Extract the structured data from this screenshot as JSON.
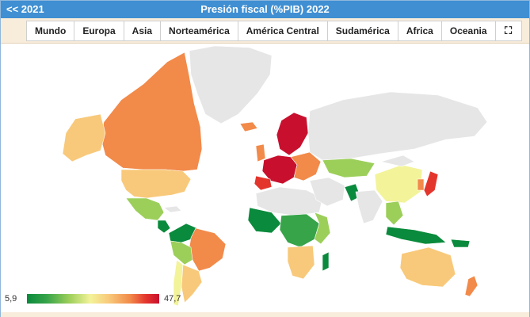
{
  "header": {
    "prev_label": "<< 2021",
    "title": "Presión fiscal (%PIB) 2022"
  },
  "tabs": [
    {
      "label": "Mundo"
    },
    {
      "label": "Europa"
    },
    {
      "label": "Asia"
    },
    {
      "label": "Norteamérica"
    },
    {
      "label": "América Central"
    },
    {
      "label": "Sudamérica"
    },
    {
      "label": "Africa"
    },
    {
      "label": "Oceania"
    },
    {
      "label": "⛶",
      "icon": "fullscreen-icon"
    }
  ],
  "legend": {
    "min": "5,9",
    "max": "47,7"
  },
  "colors": {
    "header": "#3f8fd2",
    "tabs_bg": "#f8ecda",
    "no_data": "#e6e6e6",
    "very_high": "#c8102e",
    "high": "#e4352d",
    "mid_high": "#f28a4a",
    "mid": "#f8c97a",
    "mid_low": "#f3f39a",
    "low": "#9ccf5a",
    "very_low": "#0a8a3c"
  }
}
